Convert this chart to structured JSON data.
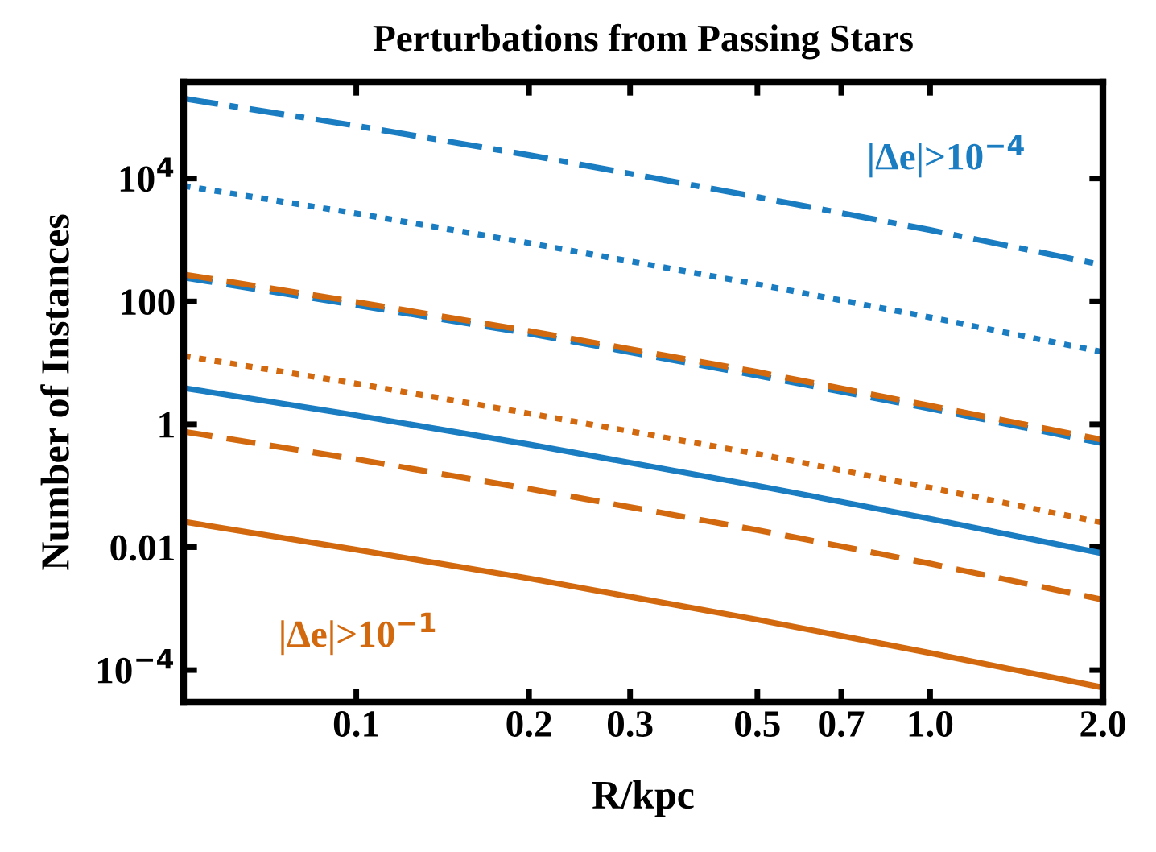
{
  "chart_data": {
    "type": "line",
    "title": "Perturbations from Passing Stars",
    "xlabel": "R/kpc",
    "ylabel": "Number of Instances",
    "log": "xy",
    "grid": false,
    "xlim": [
      0.05,
      2.0
    ],
    "ylim": [
      3e-05,
      370000.0
    ],
    "xticks": [
      0.1,
      0.2,
      0.3,
      0.5,
      0.7,
      {
        "value": 1,
        "label": "1.0"
      },
      {
        "value": 2,
        "label": "2.0"
      }
    ],
    "yticks": [
      {
        "value": 0.0001,
        "label": "10$^{−4}$"
      },
      0.01,
      1,
      100,
      {
        "value": 10000,
        "label": "10$^{4}$"
      }
    ],
    "x": [
      0.05,
      0.1,
      0.2,
      0.5,
      1.0,
      2.0
    ],
    "series": [
      {
        "color": "#1a7cc1",
        "line_style": "dashdot",
        "values": [
          200000,
          72000,
          24000,
          5000,
          1450,
          390
        ]
      },
      {
        "color": "#1a7cc1",
        "line_style": "dotted",
        "values": [
          7600,
          2700,
          890,
          190,
          55,
          15
        ]
      },
      {
        "color": "#1a7cc1",
        "line_style": "dashed",
        "values": [
          245,
          87,
          30,
          6.2,
          1.8,
          0.49
        ]
      },
      {
        "color": "#1a7cc1",
        "line_style": "solid",
        "values": [
          3.9,
          1.4,
          0.47,
          0.1,
          0.029,
          0.0079
        ]
      },
      {
        "color": "#d2690f",
        "line_style": "dashed",
        "values": [
          275,
          98,
          33,
          7.1,
          2.0,
          0.56
        ]
      },
      {
        "color": "#d2690f",
        "line_style": "dotted",
        "values": [
          13,
          4.6,
          1.5,
          0.33,
          0.093,
          0.025
        ]
      },
      {
        "color": "#d2690f",
        "line_style": "dashed",
        "values": [
          0.76,
          0.27,
          0.089,
          0.019,
          0.0054,
          0.0014
        ]
      },
      {
        "color": "#d2690f",
        "line_style": "solid",
        "values": [
          0.026,
          0.0091,
          0.0031,
          0.00066,
          0.00019,
          5.2e-05
        ]
      }
    ],
    "annotations": [
      "|Δe|>10$^{−4}$",
      "|Δe|>10$^{−1}$"
    ]
  }
}
